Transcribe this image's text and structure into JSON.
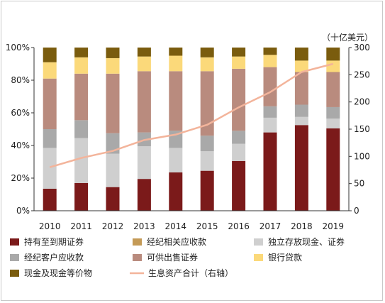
{
  "chart_data": {
    "type": "bar",
    "stacked": true,
    "categories": [
      "2010",
      "2011",
      "2012",
      "2013",
      "2014",
      "2015",
      "2016",
      "2017",
      "2018",
      "2019"
    ],
    "y_left": {
      "ylim": [
        0,
        100
      ],
      "ticks": [
        "0%",
        "20%",
        "40%",
        "60%",
        "80%",
        "100%"
      ]
    },
    "y_right": {
      "ylim": [
        0,
        300
      ],
      "ticks": [
        "0",
        "50",
        "100",
        "150",
        "200",
        "250",
        "300"
      ],
      "unit_label": "（十亿美元）"
    },
    "series": [
      {
        "name": "持有至到期证券",
        "color": "#7b1a1a",
        "values": [
          13.5,
          17,
          14.5,
          19.5,
          23.5,
          24.5,
          30.5,
          48,
          52.5,
          50.5
        ]
      },
      {
        "name": "经纪相关应收款",
        "color": "#c49a56",
        "values": [
          0,
          0,
          0,
          0,
          0,
          0,
          0,
          0,
          0,
          0
        ]
      },
      {
        "name": "独立存放现金、证券",
        "color": "#cfcfcf",
        "values": [
          25,
          27.5,
          20.5,
          20,
          15,
          12,
          10.5,
          9,
          5,
          6
        ]
      },
      {
        "name": "经纪客户应收款",
        "color": "#a9a9a9",
        "values": [
          11.5,
          11,
          12.5,
          8.5,
          10.5,
          9.5,
          8,
          7,
          7.5,
          7
        ]
      },
      {
        "name": "可供出售证券",
        "color": "#b98b7e",
        "values": [
          31,
          28.5,
          36.5,
          37.5,
          36.5,
          39.5,
          38,
          24,
          20,
          21.5
        ]
      },
      {
        "name": "银行贷款",
        "color": "#fbd97a",
        "values": [
          10,
          10,
          9.5,
          9,
          9.5,
          8.5,
          7.5,
          7.5,
          7,
          7
        ]
      },
      {
        "name": "现金及现金等价物",
        "color": "#7a5c0e",
        "values": [
          9,
          6,
          6.5,
          5.5,
          5,
          6,
          5.5,
          4.5,
          8,
          8
        ]
      }
    ],
    "line": {
      "name": "生息资产合计（右轴）",
      "color": "#f3b49b",
      "axis": "right",
      "values": [
        80,
        97,
        110,
        130,
        140,
        158,
        190,
        218,
        255,
        270
      ]
    },
    "legend_position": "bottom",
    "grid": false
  }
}
